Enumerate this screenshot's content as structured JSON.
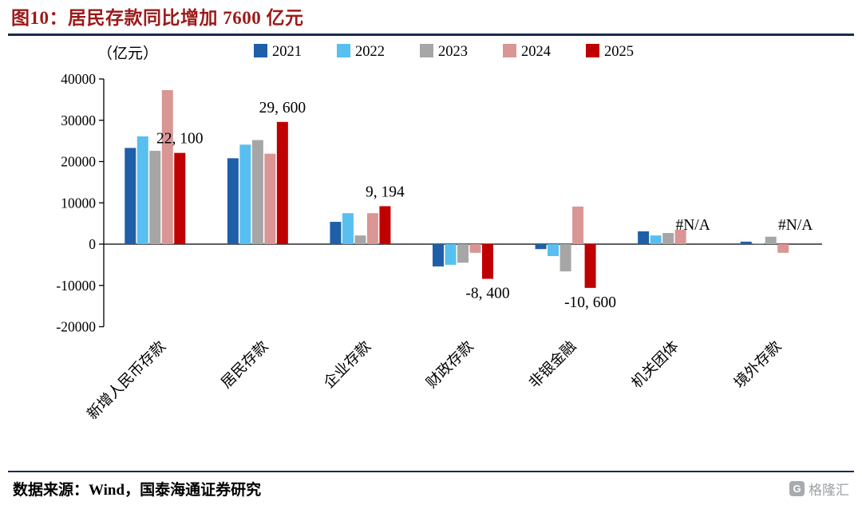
{
  "header": {
    "title": "图10：居民存款同比增加 7600 亿元"
  },
  "footer": {
    "source": "数据来源：Wind，国泰海通证券研究",
    "watermark": "格隆汇",
    "watermark_glyph": "G"
  },
  "palette": {
    "title_color": "#9C1A1A",
    "rule_color": "#1B2A4A",
    "axis_color": "#000000"
  },
  "chart_data": {
    "type": "bar",
    "title": "图10：居民存款同比增加 7600 亿元",
    "unit_label": "（亿元）",
    "ylabel": "亿元",
    "ylim": [
      -20000,
      40000
    ],
    "yticks": [
      40000,
      30000,
      20000,
      10000,
      0,
      -10000,
      -20000
    ],
    "grid": false,
    "legend_position": "top",
    "categories": [
      "新增人民币存款",
      "居民存款",
      "企业存款",
      "财政存款",
      "非银金融",
      "机关团体",
      "境外存款"
    ],
    "series": [
      {
        "name": "2021",
        "color": "#1F5FA8",
        "values": [
          23300,
          20800,
          5400,
          -5400,
          -1200,
          3100,
          600
        ]
      },
      {
        "name": "2022",
        "color": "#58BFF0",
        "values": [
          26100,
          24100,
          7500,
          -5000,
          -2900,
          2100,
          200
        ]
      },
      {
        "name": "2023",
        "color": "#A6A6A6",
        "values": [
          22600,
          25200,
          2100,
          -4500,
          -6600,
          2700,
          1800
        ]
      },
      {
        "name": "2024",
        "color": "#D99694",
        "values": [
          37300,
          21900,
          7500,
          -2100,
          9100,
          3500,
          -2100
        ]
      },
      {
        "name": "2025",
        "color": "#C00000",
        "values": [
          22100,
          29600,
          9194,
          -8400,
          -10600,
          null,
          null
        ]
      }
    ],
    "annotations": [
      {
        "category_index": 0,
        "series": "2025",
        "text": "22, 100"
      },
      {
        "category_index": 1,
        "series": "2025",
        "text": "29, 600"
      },
      {
        "category_index": 2,
        "series": "2025",
        "text": "9, 194"
      },
      {
        "category_index": 3,
        "series": "2025",
        "text": "-8, 400"
      },
      {
        "category_index": 4,
        "series": "2025",
        "text": "-10, 600"
      },
      {
        "category_index": 5,
        "series": "2025",
        "text": "#N/A"
      },
      {
        "category_index": 6,
        "series": "2025",
        "text": "#N/A"
      }
    ]
  }
}
